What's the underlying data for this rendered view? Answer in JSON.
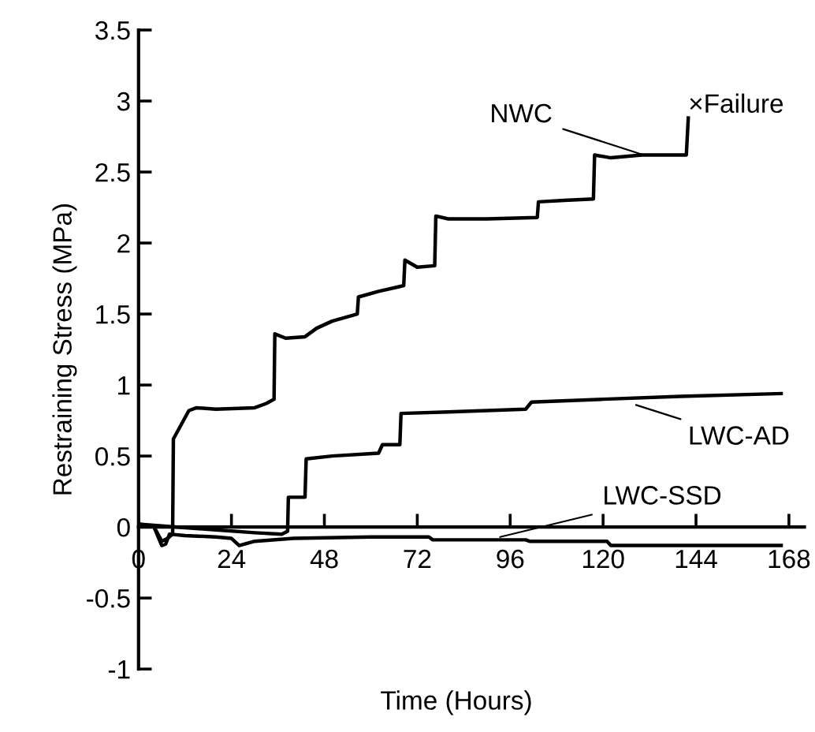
{
  "chart_data": {
    "type": "line",
    "xlabel": "Time (Hours)",
    "ylabel": "Restraining Stress (MPa)",
    "xlim": [
      0,
      172
    ],
    "ylim": [
      -1,
      3.5
    ],
    "xticks": [
      0,
      24,
      48,
      72,
      96,
      120,
      144,
      168
    ],
    "yticks": [
      -1,
      -0.5,
      0,
      0.5,
      1,
      1.5,
      2,
      2.5,
      3,
      3.5
    ],
    "grid": false,
    "legend": false,
    "marker": "none",
    "line_style": "solid",
    "series": [
      {
        "color": "#000000",
        "x": [
          0,
          4,
          6,
          7.5,
          8.8,
          9,
          11,
          13,
          15,
          20,
          30,
          33,
          35,
          35.2,
          38,
          43,
          46,
          50,
          56.5,
          56.8,
          62,
          68.5,
          68.8,
          72,
          76.5,
          76.8,
          80,
          90,
          103,
          103.3,
          110,
          117.5,
          117.8,
          122,
          130,
          141.5,
          142
        ],
        "values": [
          0.02,
          0,
          -0.1,
          -0.08,
          -0.05,
          0.62,
          0.72,
          0.82,
          0.84,
          0.83,
          0.84,
          0.87,
          0.9,
          1.36,
          1.33,
          1.34,
          1.4,
          1.45,
          1.5,
          1.62,
          1.66,
          1.7,
          1.88,
          1.83,
          1.84,
          2.19,
          2.17,
          2.17,
          2.18,
          2.29,
          2.3,
          2.31,
          2.62,
          2.6,
          2.62,
          2.62,
          2.88
        ]
      },
      {
        "color": "#000000",
        "x": [
          0,
          10,
          20,
          30,
          37,
          38.5,
          38.7,
          43,
          43.3,
          50,
          62,
          63,
          67.5,
          67.8,
          80,
          100,
          101.5,
          120,
          140,
          166
        ],
        "values": [
          0.02,
          0,
          -0.02,
          -0.04,
          -0.05,
          -0.03,
          0.21,
          0.21,
          0.48,
          0.5,
          0.52,
          0.58,
          0.58,
          0.8,
          0.81,
          0.83,
          0.88,
          0.9,
          0.92,
          0.94
        ]
      },
      {
        "color": "#000000",
        "x": [
          0,
          4,
          6,
          7,
          8,
          12,
          20,
          24,
          26,
          30,
          40,
          60,
          75,
          76,
          90,
          100,
          101,
          121,
          122,
          140,
          166
        ],
        "values": [
          0.02,
          0,
          -0.13,
          -0.12,
          -0.05,
          -0.06,
          -0.07,
          -0.08,
          -0.13,
          -0.1,
          -0.08,
          -0.07,
          -0.07,
          -0.09,
          -0.09,
          -0.09,
          -0.1,
          -0.1,
          -0.13,
          -0.13,
          -0.13
        ]
      }
    ],
    "annotations": [
      {
        "text": "NWC",
        "x": 130.5,
        "y": 2.62
      },
      {
        "text": "LWC-AD",
        "x": 128.5,
        "y": 0.86
      },
      {
        "text": "LWC-SSD",
        "x": 93.4,
        "y": -0.07
      },
      {
        "text": "×Failure",
        "x": 142,
        "y": 2.88
      }
    ]
  }
}
